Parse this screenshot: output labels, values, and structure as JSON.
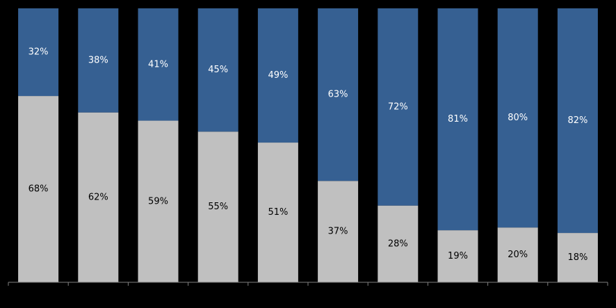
{
  "chart_data": {
    "type": "bar",
    "stacked": true,
    "percent_stacked": true,
    "categories": [
      "",
      "",
      "",
      "",
      "",
      "",
      "",
      "",
      "",
      ""
    ],
    "series": [
      {
        "values": [
          68,
          62,
          59,
          55,
          51,
          37,
          28,
          19,
          20,
          18
        ],
        "labels": [
          "68%",
          "62%",
          "59%",
          "55%",
          "51%",
          "37%",
          "28%",
          "19%",
          "20%",
          "18%"
        ],
        "color": "#C0C0C0",
        "label_color": "#000000"
      },
      {
        "values": [
          32,
          38,
          41,
          45,
          49,
          63,
          72,
          81,
          80,
          82
        ],
        "labels": [
          "32%",
          "38%",
          "41%",
          "45%",
          "49%",
          "63%",
          "72%",
          "81%",
          "80%",
          "82%"
        ],
        "color": "#366092",
        "label_color": "#FFFFFF"
      }
    ],
    "ylim": [
      0,
      100
    ],
    "grid": false,
    "legend": "none",
    "title": "",
    "xlabel": "",
    "ylabel": ""
  },
  "colors": {
    "background": "#000000",
    "axis": "#808080"
  }
}
